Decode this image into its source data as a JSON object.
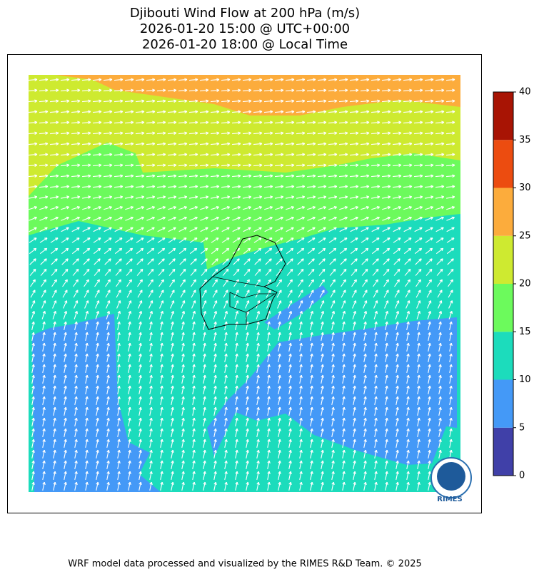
{
  "title": [
    "Djibouti Wind Flow at 200 hPa (m/s)",
    "2026-01-20 15:00 @ UTC+00:00",
    "2026-01-20 18:00 @ Local Time"
  ],
  "colorbar": {
    "levels": [
      0,
      5,
      10,
      15,
      20,
      25,
      30,
      35,
      40
    ],
    "colors": [
      "#4040a8",
      "#4499f7",
      "#1cdcbc",
      "#6cfa5c",
      "#ceea30",
      "#fcac3c",
      "#ec4c10",
      "#a81404"
    ]
  },
  "logo": "RIMES",
  "footer": "WRF model data processed and visualized by the RIMES R&D Team. © 2025"
}
